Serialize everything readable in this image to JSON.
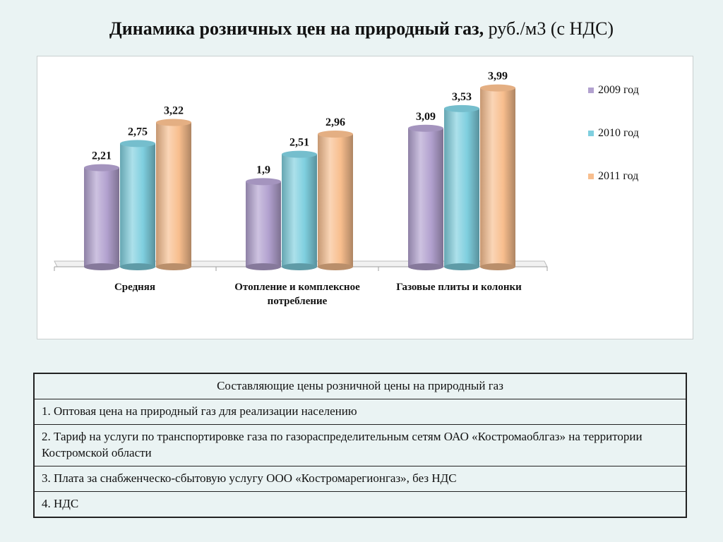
{
  "title": {
    "bold": "Динамика розничных цен на природный газ,",
    "unit": "руб./м3 (с НДС)"
  },
  "chart_data": {
    "type": "bar",
    "categories": [
      [
        "Средняя"
      ],
      [
        "Отопление и комплексное",
        "потребление"
      ],
      [
        "Газовые плиты и колонки"
      ]
    ],
    "series": [
      {
        "name": "2009 год",
        "color": "#b2a1cf",
        "values": [
          2.21,
          1.9,
          3.09
        ],
        "labels": [
          "2,21",
          "1,9",
          "3,09"
        ]
      },
      {
        "name": "2010 год",
        "color": "#7fcfdf",
        "values": [
          2.75,
          2.51,
          3.53
        ],
        "labels": [
          "2,75",
          "2,51",
          "3,53"
        ]
      },
      {
        "name": "2011 год",
        "color": "#f8be8e",
        "values": [
          3.22,
          2.96,
          3.99
        ],
        "labels": [
          "3,22",
          "2,96",
          "3,99"
        ]
      }
    ],
    "legend": "right",
    "ylim": [
      0,
      4
    ]
  },
  "table": {
    "header": "Составляющие цены розничной цены на природный газ",
    "rows": [
      "1. Оптовая цена на природный газ для реализации населению",
      "2. Тариф на услуги по транспортировке газа по газораспределительным сетям ОАО «Костромаоблгаз» на территории Костромской области",
      "3. Плата за снабженческо-сбытовую услугу ООО «Костромарегионгаз», без НДС",
      "4. НДС"
    ]
  }
}
